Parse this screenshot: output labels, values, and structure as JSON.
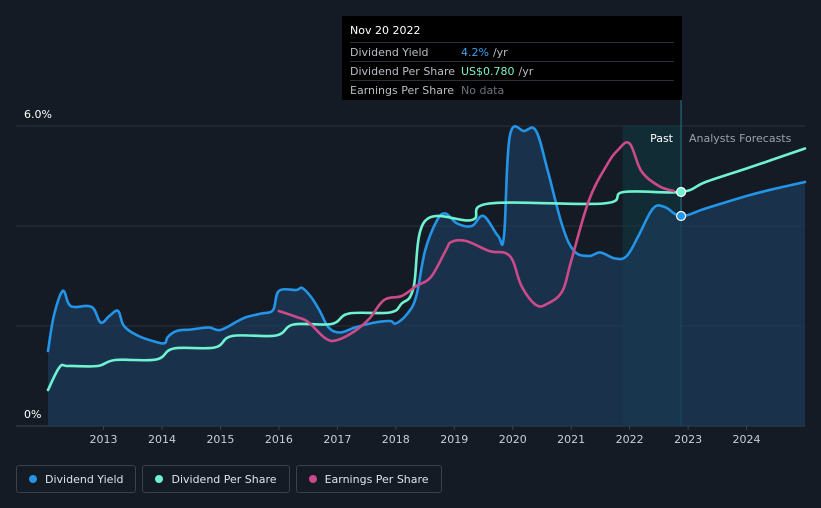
{
  "tooltip": {
    "date": "Nov 20 2022",
    "rows": [
      {
        "label": "Dividend Yield",
        "value": "4.2%",
        "unit": "/yr"
      },
      {
        "label": "Dividend Per Share",
        "value": "US$0.780",
        "unit": "/yr"
      },
      {
        "label": "Earnings Per Share",
        "value": "No data",
        "unit": ""
      }
    ]
  },
  "regions": {
    "past": "Past",
    "forecast": "Analysts Forecasts"
  },
  "legend": [
    {
      "label": "Dividend Yield",
      "color": "#2394e8"
    },
    {
      "label": "Dividend Per Share",
      "color": "#6ff2cf"
    },
    {
      "label": "Earnings Per Share",
      "color": "#cc4a8a"
    }
  ],
  "chart_data": {
    "type": "line",
    "y_axis": {
      "labels": [
        "6.0%",
        "0%"
      ],
      "ylim": [
        0,
        6
      ]
    },
    "x_axis": {
      "ticks": [
        "2013",
        "2014",
        "2015",
        "2016",
        "2017",
        "2018",
        "2019",
        "2020",
        "2021",
        "2022",
        "2023",
        "2024"
      ],
      "xlim": [
        2012.05,
        2025.0
      ]
    },
    "forecast_start": 2022.88,
    "highlight_band": [
      2021.88,
      2022.88
    ],
    "series": [
      {
        "name": "Dividend Yield",
        "color": "#2394e8",
        "fill": true,
        "points": [
          [
            2012.05,
            1.5
          ],
          [
            2012.15,
            2.2
          ],
          [
            2012.3,
            2.7
          ],
          [
            2012.4,
            2.45
          ],
          [
            2012.5,
            2.38
          ],
          [
            2012.8,
            2.38
          ],
          [
            2012.95,
            2.07
          ],
          [
            2013.1,
            2.2
          ],
          [
            2013.25,
            2.3
          ],
          [
            2013.35,
            2.0
          ],
          [
            2013.6,
            1.8
          ],
          [
            2013.9,
            1.68
          ],
          [
            2014.05,
            1.66
          ],
          [
            2014.1,
            1.78
          ],
          [
            2014.25,
            1.9
          ],
          [
            2014.5,
            1.93
          ],
          [
            2014.8,
            1.97
          ],
          [
            2015.0,
            1.92
          ],
          [
            2015.3,
            2.1
          ],
          [
            2015.45,
            2.18
          ],
          [
            2015.7,
            2.25
          ],
          [
            2015.9,
            2.32
          ],
          [
            2016.0,
            2.7
          ],
          [
            2016.3,
            2.72
          ],
          [
            2016.4,
            2.76
          ],
          [
            2016.55,
            2.58
          ],
          [
            2016.7,
            2.3
          ],
          [
            2016.85,
            1.97
          ],
          [
            2017.05,
            1.87
          ],
          [
            2017.3,
            1.97
          ],
          [
            2017.6,
            2.06
          ],
          [
            2017.9,
            2.1
          ],
          [
            2018.0,
            2.05
          ],
          [
            2018.2,
            2.25
          ],
          [
            2018.35,
            2.6
          ],
          [
            2018.5,
            3.5
          ],
          [
            2018.7,
            4.1
          ],
          [
            2018.85,
            4.25
          ],
          [
            2019.05,
            4.05
          ],
          [
            2019.3,
            4.0
          ],
          [
            2019.5,
            4.2
          ],
          [
            2019.75,
            3.8
          ],
          [
            2019.85,
            3.8
          ],
          [
            2019.95,
            5.8
          ],
          [
            2020.2,
            5.9
          ],
          [
            2020.4,
            5.9
          ],
          [
            2020.6,
            5.1
          ],
          [
            2020.85,
            4.0
          ],
          [
            2021.05,
            3.5
          ],
          [
            2021.3,
            3.4
          ],
          [
            2021.5,
            3.47
          ],
          [
            2021.75,
            3.35
          ],
          [
            2021.95,
            3.4
          ],
          [
            2022.15,
            3.8
          ],
          [
            2022.4,
            4.35
          ],
          [
            2022.6,
            4.38
          ],
          [
            2022.88,
            4.2
          ],
          [
            2023.3,
            4.35
          ],
          [
            2024.0,
            4.6
          ],
          [
            2024.5,
            4.75
          ],
          [
            2025.0,
            4.88
          ]
        ]
      },
      {
        "name": "Dividend Per Share",
        "color": "#6ff2cf",
        "fill": false,
        "points": [
          [
            2012.05,
            0.72
          ],
          [
            2012.25,
            1.18
          ],
          [
            2012.4,
            1.2
          ],
          [
            2012.9,
            1.2
          ],
          [
            2013.2,
            1.32
          ],
          [
            2013.9,
            1.33
          ],
          [
            2014.2,
            1.55
          ],
          [
            2014.9,
            1.57
          ],
          [
            2015.2,
            1.8
          ],
          [
            2015.95,
            1.81
          ],
          [
            2016.25,
            2.03
          ],
          [
            2016.9,
            2.04
          ],
          [
            2017.2,
            2.25
          ],
          [
            2017.9,
            2.27
          ],
          [
            2018.1,
            2.45
          ],
          [
            2018.3,
            2.75
          ],
          [
            2018.5,
            4.1
          ],
          [
            2019.3,
            4.12
          ],
          [
            2019.6,
            4.45
          ],
          [
            2021.55,
            4.45
          ],
          [
            2021.9,
            4.68
          ],
          [
            2022.88,
            4.68
          ],
          [
            2023.3,
            4.88
          ],
          [
            2024.0,
            5.15
          ],
          [
            2024.5,
            5.35
          ],
          [
            2025.0,
            5.55
          ]
        ]
      },
      {
        "name": "Earnings Per Share",
        "color": "#cc4a8a",
        "fill": false,
        "points": [
          [
            2016.0,
            2.3
          ],
          [
            2016.3,
            2.18
          ],
          [
            2016.5,
            2.08
          ],
          [
            2016.8,
            1.75
          ],
          [
            2017.0,
            1.72
          ],
          [
            2017.3,
            1.9
          ],
          [
            2017.55,
            2.15
          ],
          [
            2017.8,
            2.52
          ],
          [
            2018.1,
            2.6
          ],
          [
            2018.35,
            2.8
          ],
          [
            2018.6,
            2.98
          ],
          [
            2018.85,
            3.5
          ],
          [
            2018.95,
            3.68
          ],
          [
            2019.2,
            3.7
          ],
          [
            2019.6,
            3.5
          ],
          [
            2019.95,
            3.4
          ],
          [
            2020.15,
            2.8
          ],
          [
            2020.4,
            2.42
          ],
          [
            2020.6,
            2.45
          ],
          [
            2020.85,
            2.7
          ],
          [
            2021.0,
            3.3
          ],
          [
            2021.3,
            4.5
          ],
          [
            2021.6,
            5.2
          ],
          [
            2021.8,
            5.52
          ],
          [
            2022.0,
            5.65
          ],
          [
            2022.2,
            5.1
          ],
          [
            2022.5,
            4.8
          ],
          [
            2022.75,
            4.7
          ]
        ]
      }
    ]
  }
}
